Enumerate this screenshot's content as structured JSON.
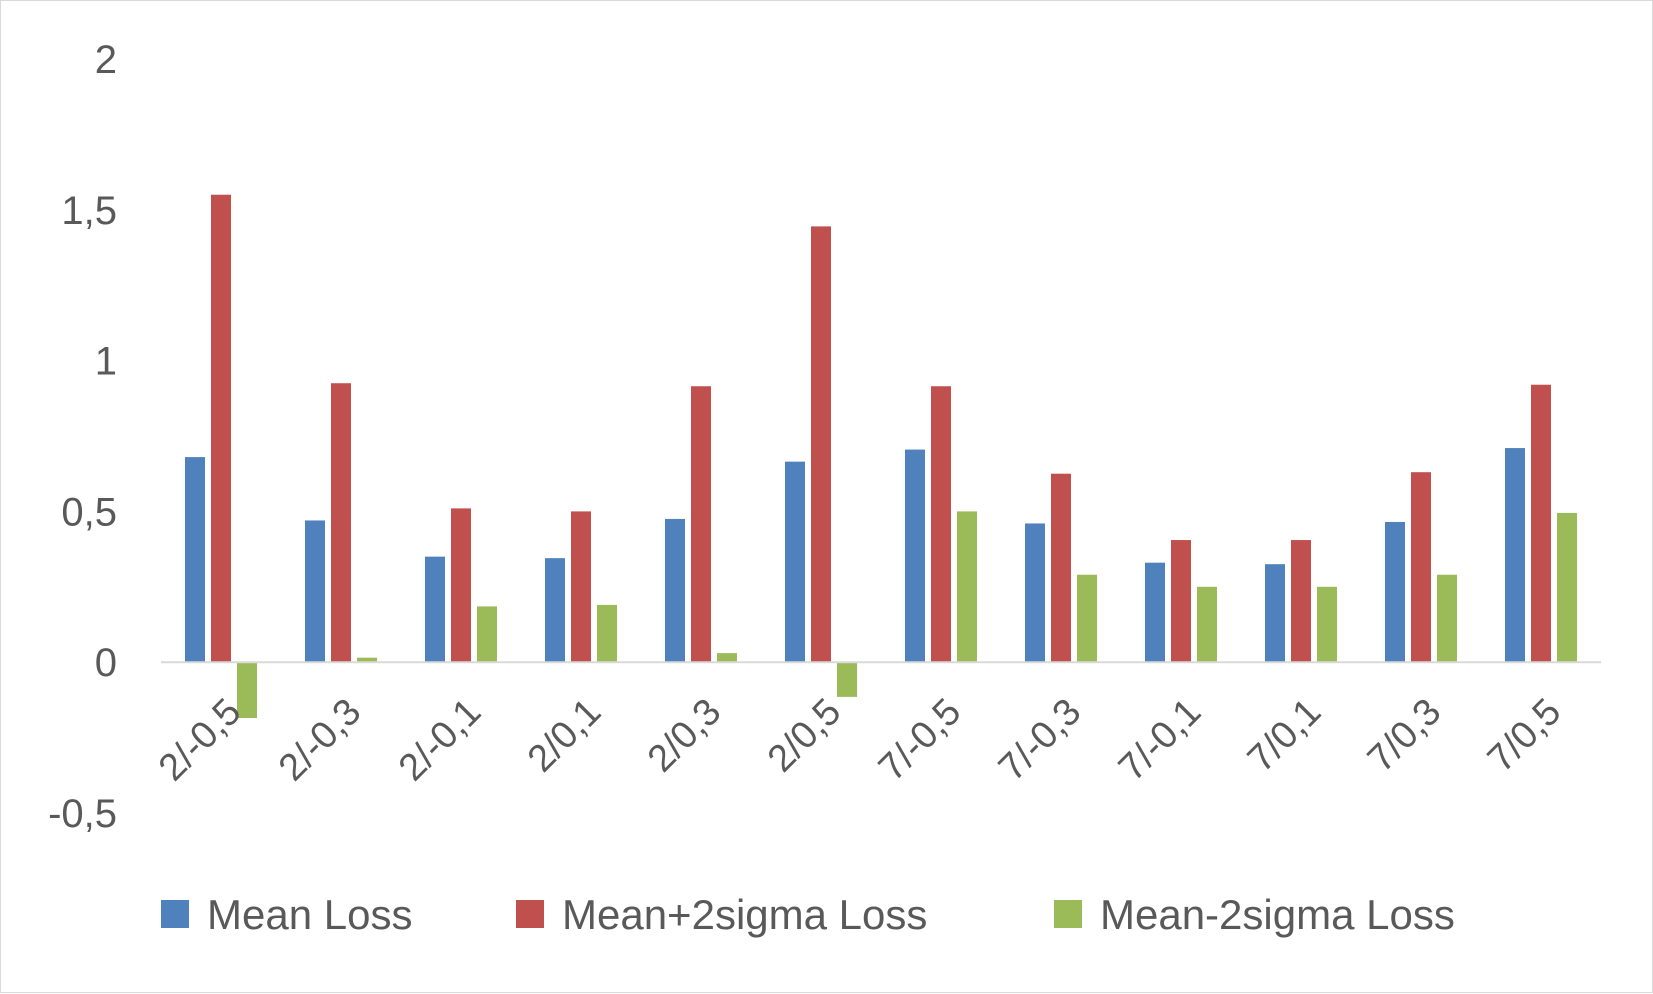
{
  "chart_data": {
    "type": "bar",
    "title": "",
    "xlabel": "",
    "ylabel": "",
    "ylim": [
      -0.5,
      2
    ],
    "yticks": [
      -0.5,
      0,
      0.5,
      1,
      1.5,
      2
    ],
    "ytick_labels": [
      "-0,5",
      "0",
      "0,5",
      "1",
      "1,5",
      "2"
    ],
    "grid": false,
    "legend_position": "bottom",
    "categories": [
      "2/-0,5",
      "2/-0,3",
      "2/-0,1",
      "2/0,1",
      "2/0,3",
      "2/0,5",
      "7/-0,5",
      "7/-0,3",
      "7/-0,1",
      "7/0,1",
      "7/0,3",
      "7/0,5"
    ],
    "series": [
      {
        "name": "Mean Loss",
        "color": "#4f81bd",
        "values": [
          0.68,
          0.47,
          0.35,
          0.345,
          0.475,
          0.665,
          0.705,
          0.46,
          0.33,
          0.325,
          0.465,
          0.71
        ]
      },
      {
        "name": "Mean+2sigma Loss",
        "color": "#c0504d",
        "values": [
          1.55,
          0.925,
          0.51,
          0.5,
          0.915,
          1.445,
          0.915,
          0.625,
          0.405,
          0.405,
          0.63,
          0.92
        ]
      },
      {
        "name": "Mean-2sigma Loss",
        "color": "#9bbb59",
        "values": [
          -0.185,
          0.015,
          0.185,
          0.19,
          0.03,
          -0.115,
          0.5,
          0.29,
          0.25,
          0.25,
          0.29,
          0.495
        ]
      }
    ]
  }
}
